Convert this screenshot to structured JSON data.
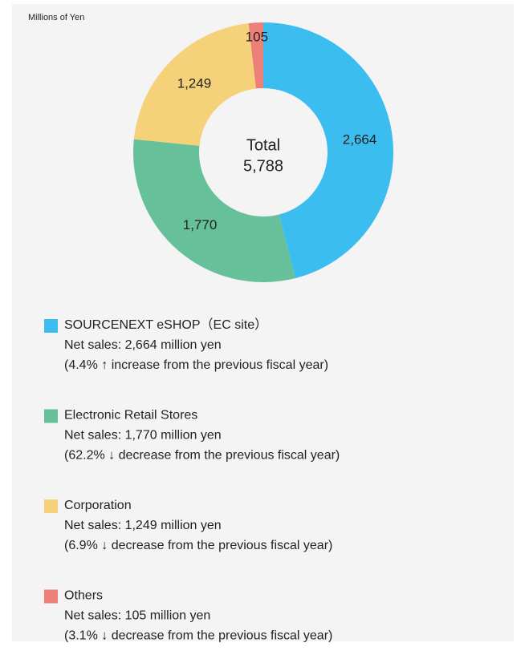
{
  "chart_data": {
    "type": "donut",
    "unit_label": "Millions of Yen",
    "center_label": "Total",
    "total": {
      "value": 5788,
      "label": "5,788"
    },
    "categories": [
      "SOURCENEXT eSHOP（EC site）",
      "Electronic Retail Stores",
      "Corporation",
      "Others"
    ],
    "values": [
      2664,
      1770,
      1249,
      105
    ],
    "value_labels": [
      "2,664",
      "1,770",
      "1,249",
      "105"
    ],
    "colors": [
      "#3bbdf0",
      "#66c09a",
      "#f5d27a",
      "#ec8079"
    ],
    "details": [
      {
        "sales": "Net sales: 2,664 million yen",
        "change": "(4.4% ↑ increase from the previous fiscal year)"
      },
      {
        "sales": "Net sales: 1,770 million yen",
        "change": "(62.2% ↓ decrease from the previous fiscal year)"
      },
      {
        "sales": "Net sales: 1,249 million yen",
        "change": "(6.9% ↓ decrease from the previous fiscal year)"
      },
      {
        "sales": "Net sales: 105 million yen",
        "change": "(3.1% ↓ decrease from the previous fiscal year)"
      }
    ]
  }
}
